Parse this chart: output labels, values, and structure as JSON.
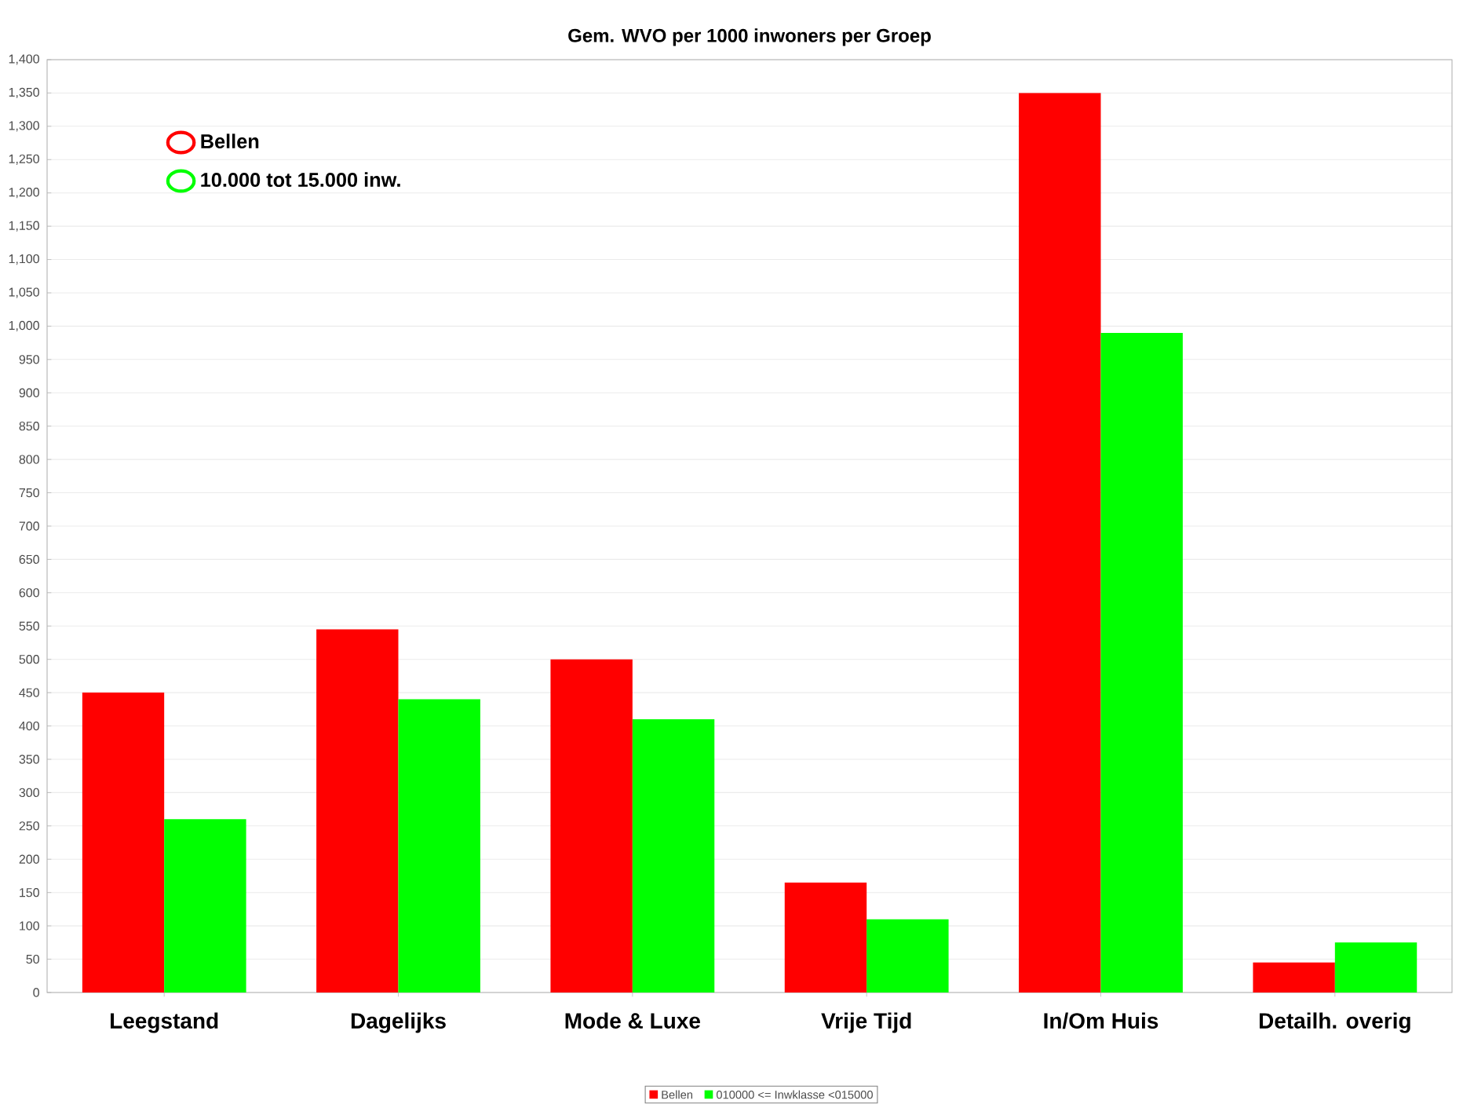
{
  "chart_data": {
    "type": "bar",
    "title": "Gem. WVO per 1000 inwoners per Groep",
    "categories": [
      "Leegstand",
      "Dagelijks",
      "Mode & Luxe",
      "Vrije Tijd",
      "In/Om Huis",
      "Detailh. overig"
    ],
    "series": [
      {
        "name": "Bellen",
        "color": "#ff0000",
        "values": [
          450,
          545,
          500,
          165,
          1350,
          45
        ]
      },
      {
        "name": "10.000 tot 15.000 inw.",
        "color": "#00ff00",
        "values": [
          260,
          440,
          410,
          110,
          990,
          75
        ]
      }
    ],
    "ylim": [
      0,
      1400
    ],
    "yticks": [
      0,
      50,
      100,
      150,
      200,
      250,
      300,
      350,
      400,
      450,
      500,
      550,
      600,
      650,
      700,
      750,
      800,
      850,
      900,
      950,
      {
        "value": 1000,
        "label": "1,000"
      },
      {
        "value": 1050,
        "label": "1,050"
      },
      {
        "value": 1100,
        "label": "1,100"
      },
      {
        "value": 1150,
        "label": "1,150"
      },
      {
        "value": 1200,
        "label": "1,200"
      },
      {
        "value": 1250,
        "label": "1,250"
      },
      {
        "value": 1300,
        "label": "1,300"
      },
      {
        "value": 1350,
        "label": "1,350"
      },
      {
        "value": 1400,
        "label": "1,400"
      }
    ],
    "grid": "y",
    "legend": "top left",
    "annotations": [
      "010000 <= Inwklasse <015000"
    ]
  }
}
